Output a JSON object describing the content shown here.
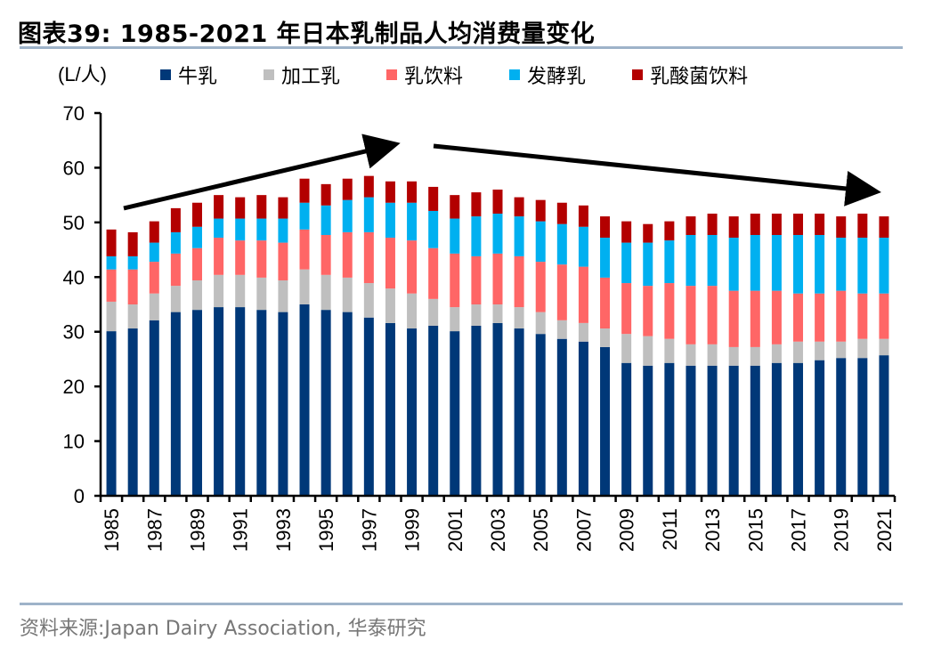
{
  "header": {
    "title": "图表39:  1985-2021 年日本乳制品人均消费量变化"
  },
  "footer": {
    "source": "资料来源:Japan Dairy Association, 华泰研究"
  },
  "chart_data": {
    "type": "bar",
    "stacked": true,
    "title": "1985-2021 年日本乳制品人均消费量变化",
    "unit_label": "(L/人)",
    "xlabel": "",
    "ylabel": "(L/人)",
    "ylim": [
      0,
      70
    ],
    "yticks": [
      0,
      10,
      20,
      30,
      40,
      50,
      60,
      70
    ],
    "grid": false,
    "legend_position": "top",
    "categories": [
      "1985",
      "1986",
      "1987",
      "1988",
      "1989",
      "1990",
      "1991",
      "1992",
      "1993",
      "1994",
      "1995",
      "1996",
      "1997",
      "1998",
      "1999",
      "2000",
      "2001",
      "2002",
      "2003",
      "2004",
      "2005",
      "2006",
      "2007",
      "2008",
      "2009",
      "2010",
      "2011",
      "2012",
      "2013",
      "2014",
      "2015",
      "2016",
      "2017",
      "2018",
      "2019",
      "2020",
      "2021"
    ],
    "xtick_labels_shown": [
      "1985",
      "1987",
      "1989",
      "1991",
      "1993",
      "1995",
      "1997",
      "1999",
      "2001",
      "2003",
      "2005",
      "2007",
      "2009",
      "2011",
      "2013",
      "2015",
      "2017",
      "2019",
      "2021"
    ],
    "series": [
      {
        "name": "牛乳",
        "color": "#003878",
        "values": [
          30.1,
          30.6,
          32.1,
          33.6,
          34.0,
          34.5,
          34.5,
          34.0,
          33.6,
          35.0,
          34.0,
          33.6,
          32.6,
          31.6,
          30.6,
          31.1,
          30.1,
          31.1,
          31.6,
          30.6,
          29.6,
          28.7,
          28.2,
          27.2,
          24.3,
          23.8,
          24.3,
          23.8,
          23.8,
          23.8,
          23.8,
          24.3,
          24.3,
          24.8,
          25.2,
          25.2,
          25.7
        ]
      },
      {
        "name": "加工乳",
        "color": "#bfbfbf",
        "values": [
          5.4,
          4.4,
          4.9,
          4.8,
          5.4,
          5.9,
          5.9,
          5.9,
          5.8,
          6.4,
          6.4,
          6.3,
          6.3,
          6.3,
          6.4,
          4.9,
          4.4,
          3.9,
          3.4,
          3.9,
          4.0,
          3.4,
          3.4,
          3.4,
          5.3,
          5.4,
          4.4,
          3.9,
          3.9,
          3.4,
          3.4,
          3.4,
          3.9,
          3.4,
          3.0,
          3.5,
          3.0
        ]
      },
      {
        "name": "乳饮料",
        "color": "#ff6666",
        "values": [
          5.9,
          6.4,
          5.8,
          5.9,
          5.9,
          6.8,
          6.3,
          6.8,
          6.9,
          7.3,
          7.3,
          8.3,
          9.3,
          9.3,
          9.7,
          9.3,
          9.8,
          8.8,
          9.3,
          9.3,
          9.2,
          10.2,
          10.3,
          9.3,
          9.3,
          9.2,
          10.2,
          10.7,
          10.7,
          10.3,
          10.3,
          9.8,
          8.8,
          8.8,
          9.3,
          8.3,
          8.3
        ]
      },
      {
        "name": "发酵乳",
        "color": "#00b0f0",
        "values": [
          2.4,
          2.4,
          3.5,
          3.9,
          3.9,
          3.5,
          4.0,
          4.0,
          4.4,
          4.9,
          5.4,
          5.9,
          6.4,
          6.4,
          6.9,
          6.8,
          6.4,
          7.3,
          7.3,
          7.3,
          7.4,
          7.4,
          7.3,
          7.3,
          7.4,
          7.9,
          7.8,
          9.3,
          9.3,
          9.7,
          10.2,
          10.2,
          10.7,
          10.7,
          9.7,
          10.2,
          10.2
        ]
      },
      {
        "name": "乳酸菌饮料",
        "color": "#b30000",
        "values": [
          4.9,
          4.4,
          3.9,
          4.4,
          4.4,
          4.3,
          3.9,
          4.3,
          3.9,
          4.4,
          3.9,
          3.9,
          3.9,
          3.9,
          3.9,
          4.4,
          4.3,
          4.4,
          4.4,
          3.5,
          3.9,
          3.9,
          3.9,
          3.9,
          3.9,
          3.4,
          3.5,
          3.4,
          3.9,
          3.9,
          3.9,
          3.9,
          3.9,
          3.9,
          3.9,
          4.4,
          3.9
        ]
      }
    ],
    "annotations": [
      {
        "type": "arrow",
        "description": "upward trend arrow",
        "from_year": "1985",
        "to_year": "1999"
      },
      {
        "type": "arrow",
        "description": "downward trend arrow",
        "from_year": "2000",
        "to_year": "2021"
      }
    ]
  }
}
